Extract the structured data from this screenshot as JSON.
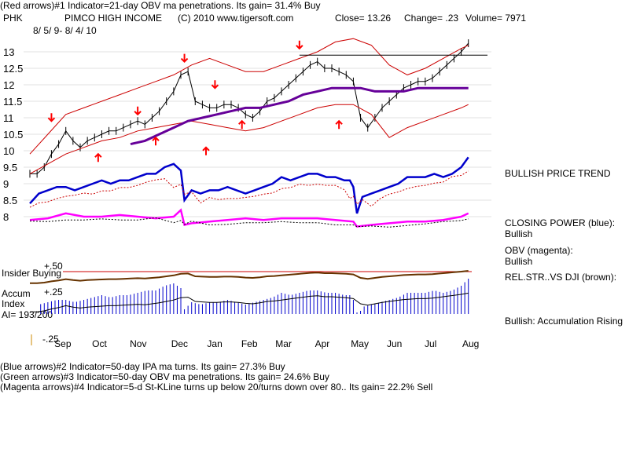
{
  "header": {
    "indicator1": "(Red arrows)#1 Indicator=21-day OBV ma penetrations. Its gain= 31.4% Buy",
    "symbol": "PHK",
    "company": "PIMCO HIGH INCOME",
    "copyright": "(C) 2010 www.tigersoft.com",
    "close": "Close=  13.26",
    "change": "Change= .23",
    "volume": "Volume= 7971",
    "dates": "8/ 5/ 9-  8/ 4/ 10"
  },
  "footer": {
    "indicator2": "(Blue arrows)#2 Indicator=50-day IPA ma turns. Its gain= 27.3% Buy",
    "indicator3": "(Green arrows)#3 Indicator=50-day OBV ma penetrations. Its gain= 24.6% Buy",
    "indicator4": "(Magenta arrows)#4 Indicator=5-d St-KLine turns up below 20/turns down over 80.. Its gain= 22.2% Sell"
  },
  "right_panel": {
    "price_trend": "BULLISH PRICE TREND",
    "cp_label": "CLOSING POWER (blue):",
    "cp_value": "Bullish",
    "obv_label": "OBV (magenta):",
    "obv_value": "Bullish",
    "relstr_label": "REL.STR..VS DJI (brown):",
    "accum_status": "Bullish: Accumulation Rising"
  },
  "left_panel": {
    "plus50": "+.50",
    "insider": "Insider Buying",
    "accum": "Accum",
    "plus25": "+.25",
    "index": "Index",
    "ai": "AI= 193/200",
    "minus25": "-.25"
  },
  "colors": {
    "price": "#000000",
    "bands": "#cc0000",
    "ma": "#660099",
    "closing_power": "#0000cc",
    "obv": "#ff00ff",
    "rel_str": "#663300",
    "accum": "#0000cc",
    "insider": "#cc0000"
  },
  "chart_data": {
    "type": "line",
    "title": "PHK PIMCO HIGH INCOME",
    "xlabel": "",
    "ylabel": "",
    "ylim": [
      7.6,
      13.5
    ],
    "price_ticks": [
      "13",
      "12.5",
      "12",
      "11.5",
      "11",
      "10.5",
      "10",
      "9.5",
      "9",
      "8.5",
      "8"
    ],
    "price_tick_values": [
      13,
      12.5,
      12,
      11.5,
      11,
      10.5,
      10,
      9.5,
      9,
      8.5,
      8
    ],
    "months": [
      "Sep",
      "Oct",
      "Nov",
      "Dec",
      "Jan",
      "Feb",
      "Mar",
      "Apr",
      "May",
      "Jun",
      "Jul",
      "Aug"
    ],
    "month_index": [
      18,
      39,
      60,
      83,
      103,
      122,
      141,
      163,
      183,
      203,
      224,
      245
    ],
    "series": [
      {
        "name": "Price",
        "x": [
          0,
          4,
          8,
          12,
          16,
          20,
          24,
          28,
          32,
          36,
          40,
          44,
          48,
          52,
          56,
          60,
          64,
          68,
          72,
          76,
          80,
          84,
          88,
          92,
          96,
          100,
          104,
          108,
          112,
          116,
          120,
          124,
          128,
          132,
          136,
          140,
          144,
          148,
          152,
          156,
          160,
          164,
          168,
          172,
          176,
          180,
          184,
          188,
          192,
          196,
          200,
          204,
          208,
          212,
          216,
          220,
          224,
          228,
          232,
          236,
          240,
          244
        ],
        "values": [
          9.3,
          9.3,
          9.5,
          9.9,
          10.2,
          10.6,
          10.3,
          10.1,
          10.3,
          10.4,
          10.5,
          10.6,
          10.6,
          10.7,
          10.8,
          10.9,
          10.8,
          11.0,
          11.2,
          11.5,
          11.8,
          12.3,
          12.4,
          11.5,
          11.4,
          11.3,
          11.3,
          11.4,
          11.4,
          11.3,
          11.1,
          11.0,
          11.2,
          11.5,
          11.6,
          11.8,
          12.0,
          12.2,
          12.4,
          12.6,
          12.7,
          12.5,
          12.5,
          12.4,
          12.3,
          12.1,
          11.0,
          10.7,
          11.0,
          11.3,
          11.5,
          11.7,
          11.9,
          12.0,
          12.1,
          12.1,
          12.2,
          12.4,
          12.6,
          12.8,
          13.0,
          13.26
        ]
      },
      {
        "name": "Upper Band",
        "x": [
          0,
          10,
          20,
          30,
          40,
          50,
          60,
          70,
          80,
          90,
          100,
          110,
          120,
          130,
          140,
          150,
          160,
          170,
          180,
          190,
          200,
          210,
          220,
          230,
          240,
          244
        ],
        "values": [
          9.9,
          10.5,
          11.1,
          11.3,
          11.5,
          11.7,
          11.9,
          12.1,
          12.3,
          12.6,
          12.8,
          12.6,
          12.4,
          12.4,
          12.6,
          12.8,
          13.0,
          13.3,
          13.4,
          13.2,
          12.6,
          12.3,
          12.5,
          12.8,
          13.1,
          13.2
        ]
      },
      {
        "name": "Lower Band",
        "x": [
          0,
          10,
          20,
          30,
          40,
          50,
          60,
          70,
          80,
          90,
          100,
          110,
          120,
          130,
          140,
          150,
          160,
          170,
          180,
          190,
          200,
          210,
          220,
          230,
          240,
          244
        ],
        "values": [
          9.3,
          9.6,
          9.9,
          10.1,
          10.3,
          10.4,
          10.6,
          10.7,
          10.8,
          10.9,
          10.8,
          10.7,
          10.6,
          10.7,
          10.9,
          11.1,
          11.3,
          11.4,
          11.4,
          11.1,
          10.4,
          10.7,
          10.9,
          11.1,
          11.3,
          11.4
        ]
      },
      {
        "name": "Moving Average",
        "x": [
          56,
          64,
          72,
          80,
          88,
          96,
          104,
          112,
          120,
          128,
          136,
          144,
          152,
          160,
          168,
          176,
          184,
          192,
          200,
          208,
          216,
          224,
          232,
          240,
          244
        ],
        "values": [
          10.2,
          10.3,
          10.5,
          10.7,
          10.9,
          11.0,
          11.1,
          11.2,
          11.3,
          11.3,
          11.4,
          11.5,
          11.7,
          11.8,
          11.9,
          11.9,
          11.9,
          11.8,
          11.8,
          11.8,
          11.9,
          11.9,
          11.9,
          11.9,
          11.9
        ]
      },
      {
        "name": "Closing Power (blue)",
        "x": [
          0,
          5,
          10,
          15,
          20,
          25,
          30,
          35,
          40,
          45,
          50,
          55,
          60,
          65,
          70,
          75,
          80,
          84,
          86,
          90,
          95,
          100,
          105,
          110,
          115,
          120,
          125,
          130,
          135,
          140,
          145,
          150,
          155,
          160,
          165,
          170,
          175,
          178,
          180,
          182,
          185,
          190,
          195,
          200,
          205,
          210,
          215,
          220,
          225,
          230,
          235,
          240,
          244
        ],
        "values": [
          8.4,
          8.7,
          8.8,
          8.9,
          8.9,
          8.8,
          8.9,
          9.0,
          9.1,
          9.0,
          9.1,
          9.1,
          9.2,
          9.3,
          9.3,
          9.5,
          9.6,
          9.4,
          8.5,
          8.8,
          8.7,
          8.8,
          8.8,
          8.9,
          8.8,
          8.7,
          8.8,
          8.9,
          9.0,
          9.2,
          9.1,
          9.2,
          9.3,
          9.3,
          9.2,
          9.2,
          9.1,
          9.1,
          8.9,
          8.1,
          8.6,
          8.7,
          8.8,
          8.9,
          9.0,
          9.2,
          9.2,
          9.2,
          9.3,
          9.2,
          9.3,
          9.5,
          9.8
        ]
      },
      {
        "name": "OBV (magenta)",
        "x": [
          0,
          10,
          20,
          30,
          40,
          50,
          60,
          70,
          80,
          84,
          86,
          90,
          100,
          110,
          120,
          130,
          140,
          150,
          160,
          170,
          180,
          182,
          190,
          200,
          210,
          220,
          230,
          240,
          244
        ],
        "values": [
          7.9,
          7.95,
          8.1,
          8.0,
          8.0,
          8.05,
          8.0,
          7.95,
          8.0,
          8.2,
          7.75,
          7.8,
          7.85,
          7.9,
          7.95,
          7.9,
          7.95,
          7.95,
          7.95,
          7.9,
          7.85,
          7.7,
          7.75,
          7.8,
          7.85,
          7.85,
          7.9,
          8.0,
          8.1
        ]
      }
    ]
  }
}
